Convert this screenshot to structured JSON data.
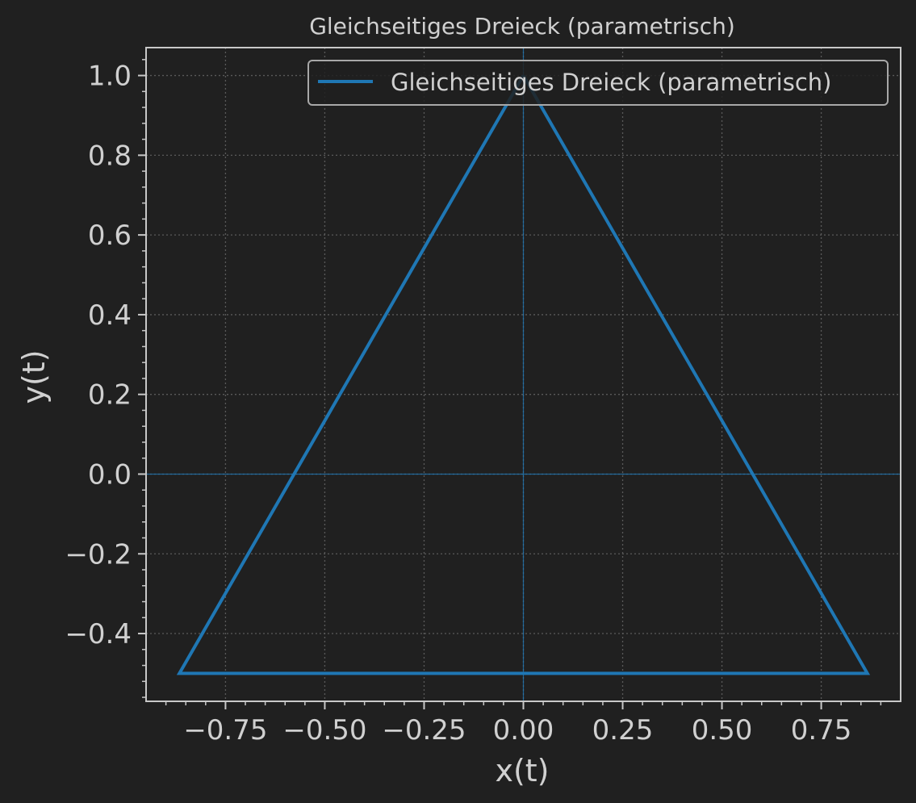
{
  "chart_data": {
    "type": "line",
    "title": "Gleichseitiges Dreieck (parametrisch)",
    "xlabel": "x(t)",
    "ylabel": "y(t)",
    "xlim": [
      -0.95,
      0.95
    ],
    "ylim": [
      -0.57,
      1.07
    ],
    "xticks": [
      -0.75,
      -0.5,
      -0.25,
      0.0,
      0.25,
      0.5,
      0.75
    ],
    "xtick_labels": [
      "−0.75",
      "−0.50",
      "−0.25",
      "0.00",
      "0.25",
      "0.50",
      "0.75"
    ],
    "yticks": [
      -0.4,
      -0.2,
      0.0,
      0.2,
      0.4,
      0.6,
      0.8,
      1.0
    ],
    "ytick_labels": [
      "−0.4",
      "−0.2",
      "0.0",
      "0.2",
      "0.4",
      "0.6",
      "0.8",
      "1.0"
    ],
    "grid": true,
    "reference_lines": {
      "x": 0,
      "y": 0
    },
    "legend_position": "top-right",
    "series": [
      {
        "name": "Gleichseitiges Dreieck (parametrisch)",
        "color": "#1f77b4",
        "x": [
          0.0,
          0.866,
          -0.866,
          0.0
        ],
        "y": [
          1.0,
          -0.5,
          -0.5,
          1.0
        ]
      }
    ]
  },
  "colors": {
    "background": "#202020",
    "axes": "#c8c8c8",
    "text": "#d0d0d0",
    "grid": "#5a5a5a",
    "series": "#1f77b4"
  }
}
